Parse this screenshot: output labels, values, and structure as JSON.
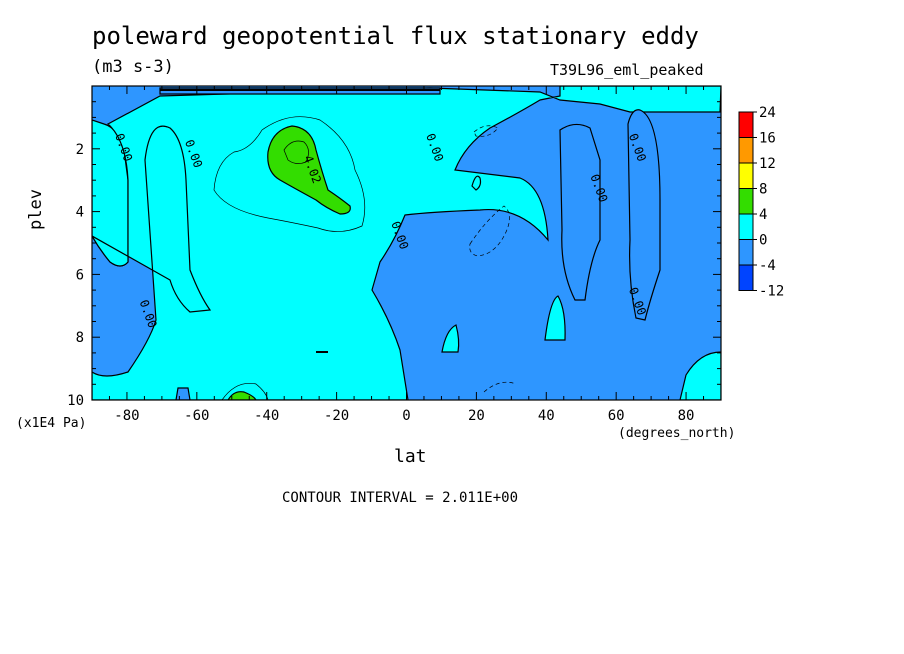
{
  "chart_data": {
    "type": "heatmap",
    "title": "poleward geopotential flux stationary eddy",
    "units": "(m3 s-3)",
    "dataset_label": "T39L96_eml_peaked",
    "xlabel": "lat",
    "x_unit_label": "(degrees_north)",
    "ylabel": "plev",
    "y_unit_label": "(x1E4 Pa)",
    "xlim": [
      -90,
      90
    ],
    "ylim": [
      10,
      0
    ],
    "x_ticks": [
      -80,
      -60,
      -40,
      -20,
      0,
      20,
      40,
      60,
      80
    ],
    "y_ticks": [
      2,
      4,
      6,
      8,
      10
    ],
    "contour_interval_text": "CONTOUR INTERVAL = 2.011E+00",
    "colorbar": {
      "labels": [
        "24",
        "16",
        "12",
        "8",
        "4",
        "0",
        "-4",
        "-12"
      ],
      "colors": [
        "#ff0000",
        "#ff9900",
        "#ffff00",
        "#33dd00",
        "#00ffff",
        "#2e96ff",
        "#0044ff"
      ]
    },
    "contour_labels": [
      {
        "text": "0.00",
        "lat": -82,
        "plev": 2.0
      },
      {
        "text": "0.00",
        "lat": -62,
        "plev": 2.2
      },
      {
        "text": "4.02",
        "lat": -28,
        "plev": 2.7
      },
      {
        "text": "0.00",
        "lat": 7,
        "plev": 2.0
      },
      {
        "text": "0.00",
        "lat": -3,
        "plev": 4.8
      },
      {
        "text": "0.00",
        "lat": 54,
        "plev": 3.3
      },
      {
        "text": "0.00",
        "lat": 65,
        "plev": 2.0
      },
      {
        "text": "0.00",
        "lat": -75,
        "plev": 7.3
      },
      {
        "text": "0.00",
        "lat": 65,
        "plev": 6.9
      }
    ]
  }
}
